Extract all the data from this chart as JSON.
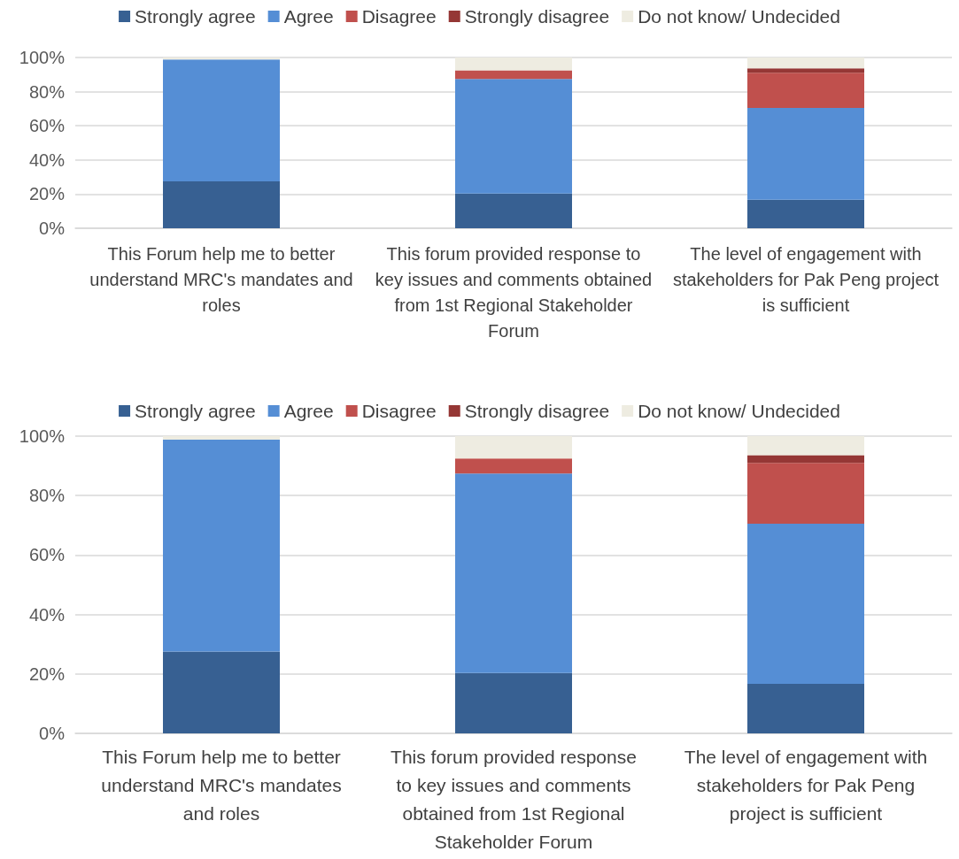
{
  "chart_data": [
    {
      "type": "bar",
      "stacked": true,
      "categories": [
        "This Forum help me to better understand MRC's mandates and roles",
        "This forum provided response to key issues and comments obtained from 1st Regional Stakeholder Forum",
        "The level of engagement with stakeholders for Pak Peng project is sufficient"
      ],
      "series": [
        {
          "name": "Strongly agree",
          "color": "#376092",
          "values": [
            27.5,
            20.3,
            16.7
          ]
        },
        {
          "name": "Agree",
          "color": "#558ed5",
          "values": [
            71.3,
            67.1,
            53.8
          ]
        },
        {
          "name": "Disagree",
          "color": "#c0504d",
          "values": [
            0,
            5.1,
            20.5
          ]
        },
        {
          "name": "Strongly disagree",
          "color": "#953735",
          "values": [
            0,
            0,
            2.6
          ]
        },
        {
          "name": "Do not know/ Undecided",
          "color": "#eeece1",
          "values": [
            1.2,
            7.6,
            6.4
          ]
        }
      ],
      "ylim": [
        0,
        100
      ],
      "yticks": [
        {
          "value": 0,
          "label": "0%"
        },
        {
          "value": 20,
          "label": "20%"
        },
        {
          "value": 40,
          "label": "40%"
        },
        {
          "value": 60,
          "label": "60%"
        },
        {
          "value": 80,
          "label": "80%"
        },
        {
          "value": 100,
          "label": "100%"
        }
      ],
      "grid": "y",
      "legend": "top"
    },
    {
      "type": "bar",
      "stacked": true,
      "categories": [
        "This Forum help me to better understand MRC's mandates and roles",
        "This forum provided response to key issues and comments obtained from 1st Regional Stakeholder Forum",
        "The level of engagement with stakeholders for Pak Peng project is sufficient"
      ],
      "series": [
        {
          "name": "Strongly agree",
          "color": "#376092",
          "values": [
            27.5,
            20.3,
            16.7
          ]
        },
        {
          "name": "Agree",
          "color": "#558ed5",
          "values": [
            71.3,
            67.1,
            53.8
          ]
        },
        {
          "name": "Disagree",
          "color": "#c0504d",
          "values": [
            0,
            5.1,
            20.5
          ]
        },
        {
          "name": "Strongly disagree",
          "color": "#953735",
          "values": [
            0,
            0,
            2.6
          ]
        },
        {
          "name": "Do not know/ Undecided",
          "color": "#eeece1",
          "values": [
            1.2,
            7.6,
            6.4
          ]
        }
      ],
      "ylim": [
        0,
        100
      ],
      "yticks": [
        {
          "value": 0,
          "label": "0%"
        },
        {
          "value": 20,
          "label": "20%"
        },
        {
          "value": 40,
          "label": "40%"
        },
        {
          "value": 60,
          "label": "60%"
        },
        {
          "value": 80,
          "label": "80%"
        },
        {
          "value": 100,
          "label": "100%"
        }
      ],
      "grid": "y",
      "legend": "top"
    }
  ]
}
